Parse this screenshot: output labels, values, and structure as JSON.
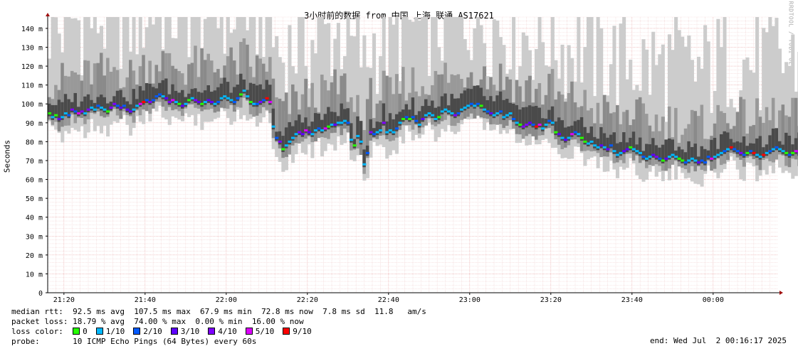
{
  "chart_data": {
    "type": "line",
    "title": "3小时前的数据 from 中国 上海 联通 AS17621",
    "ylabel": "Seconds",
    "yticks": [
      "0",
      "10 m",
      "20 m",
      "30 m",
      "40 m",
      "50 m",
      "60 m",
      "70 m",
      "80 m",
      "90 m",
      "100 m",
      "110 m",
      "120 m",
      "130 m",
      "140 m"
    ],
    "ylim_ms": [
      0,
      146
    ],
    "xticks": [
      "21:20",
      "21:40",
      "22:00",
      "22:20",
      "22:40",
      "23:00",
      "23:20",
      "23:40",
      "00:00"
    ],
    "x_start": "21:16",
    "x_end": "00:16",
    "x_step_min": 0.8,
    "grid": true,
    "median_ms": [
      95,
      93,
      94,
      92,
      93,
      95,
      94,
      97,
      96,
      95,
      96,
      95,
      97,
      98,
      97,
      99,
      98,
      97,
      96,
      98,
      100,
      99,
      98,
      99,
      97,
      96,
      97,
      99,
      100,
      101,
      102,
      101,
      102,
      104,
      105,
      104,
      103,
      101,
      102,
      101,
      100,
      99,
      100,
      102,
      103,
      102,
      101,
      100,
      101,
      102,
      101,
      100,
      101,
      103,
      104,
      103,
      102,
      101,
      103,
      105,
      107,
      104,
      101,
      100,
      100,
      101,
      102,
      103,
      101,
      88,
      82,
      80,
      76,
      78,
      80,
      82,
      84,
      85,
      84,
      86,
      85,
      84,
      86,
      87,
      86,
      87,
      88,
      89,
      89,
      90,
      90,
      91,
      90,
      81,
      78,
      83,
      80,
      68,
      74,
      85,
      84,
      85,
      86,
      90,
      85,
      86,
      85,
      87,
      90,
      92,
      93,
      92,
      93,
      91,
      89,
      92,
      94,
      95,
      94,
      92,
      93,
      96,
      97,
      96,
      95,
      94,
      95,
      97,
      98,
      99,
      100,
      99,
      100,
      99,
      97,
      96,
      95,
      94,
      95,
      96,
      93,
      94,
      95,
      92,
      90,
      89,
      88,
      89,
      90,
      89,
      88,
      89,
      87,
      89,
      91,
      90,
      85,
      84,
      82,
      81,
      82,
      84,
      85,
      84,
      82,
      80,
      79,
      80,
      78,
      77,
      78,
      77,
      76,
      78,
      75,
      73,
      74,
      75,
      76,
      77,
      76,
      75,
      74,
      72,
      71,
      72,
      73,
      72,
      71,
      70,
      71,
      72,
      73,
      72,
      71,
      70,
      69,
      70,
      71,
      70,
      69,
      70,
      69,
      72,
      71,
      72,
      73,
      74,
      75,
      76,
      77,
      76,
      75,
      74,
      73,
      74,
      75,
      74,
      73,
      72,
      73,
      74,
      75,
      76,
      77,
      76,
      75,
      74,
      73,
      74,
      75,
      74,
      73,
      72
    ],
    "median_rtt": {
      "label": "median rtt:",
      "avg": "92.5 ms avg",
      "max": "107.5 ms max",
      "min": "67.9 ms min",
      "now": "72.8 ms now",
      "sd": "7.8 ms sd",
      "am": "11.8   am/s"
    },
    "packet_loss": {
      "label": "packet loss:",
      "avg": "18.79 % avg",
      "max": "74.00 % max",
      "min": "0.00 % min",
      "now": "16.00 % now"
    },
    "loss_colors": {
      "label": "loss color:",
      "items": [
        {
          "label": "0",
          "color": "#26ff00"
        },
        {
          "label": "1/10",
          "color": "#00b8ff"
        },
        {
          "label": "2/10",
          "color": "#0059ff"
        },
        {
          "label": "3/10",
          "color": "#5e00ff"
        },
        {
          "label": "4/10",
          "color": "#7e00ff"
        },
        {
          "label": "5/10",
          "color": "#dd00ff"
        },
        {
          "label": "9/10",
          "color": "#ff0000"
        }
      ]
    },
    "probe": {
      "label": "probe:",
      "text": "10 ICMP Echo Pings (64 Bytes) every 60s"
    },
    "end": "end: Wed Jul  2 00:16:17 2025",
    "watermark": "RRDTOOL / TOBI OETIKER"
  }
}
